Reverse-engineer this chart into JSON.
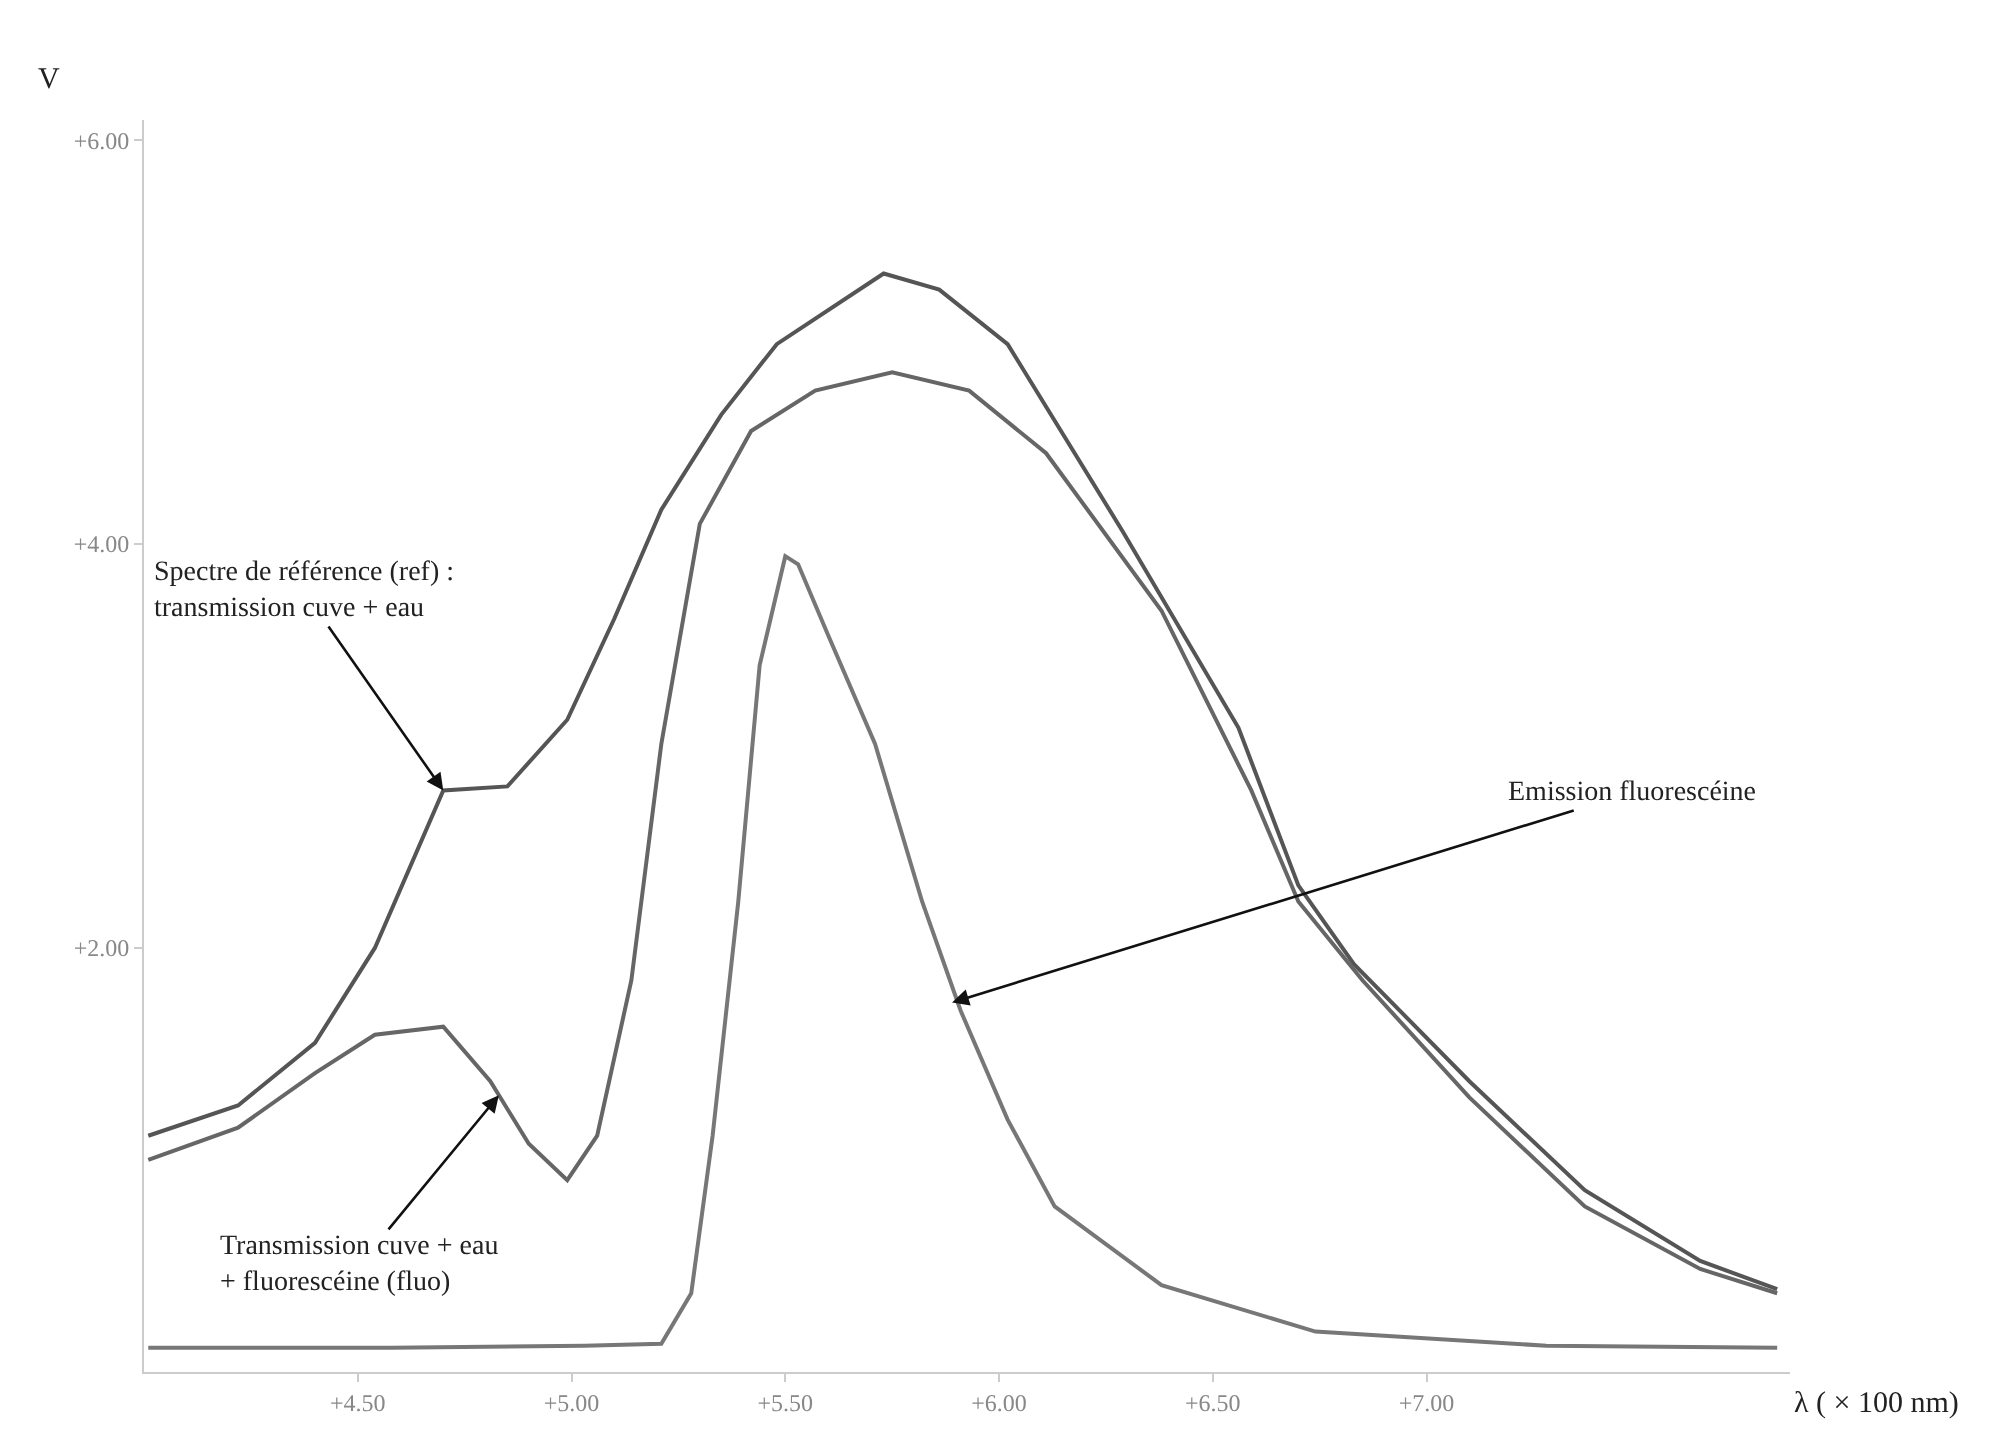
{
  "chart_data": {
    "type": "line",
    "xlabel": "λ ( × 100 nm)",
    "ylabel": "V",
    "xlim": [
      4.0,
      7.85
    ],
    "ylim": [
      -0.1,
      6.1
    ],
    "xticks": [
      {
        "value": 4.5,
        "label": "+4.50"
      },
      {
        "value": 5.0,
        "label": "+5.00"
      },
      {
        "value": 5.5,
        "label": "+5.50"
      },
      {
        "value": 6.0,
        "label": "+6.00"
      },
      {
        "value": 6.5,
        "label": "+6.50"
      },
      {
        "value": 7.0,
        "label": "+7.00"
      }
    ],
    "yticks": [
      {
        "value": 2,
        "label": "+2.00"
      },
      {
        "value": 4,
        "label": "+4.00"
      },
      {
        "value": 6,
        "label": "+6.00"
      }
    ],
    "marker": "none",
    "line_style": "solid",
    "series": [
      {
        "color": "#555555",
        "x": [
          4.01,
          4.22,
          4.4,
          4.54,
          4.7,
          4.85,
          4.99,
          5.1,
          5.21,
          5.35,
          5.48,
          5.73,
          5.86,
          6.02,
          6.29,
          6.56,
          6.7,
          6.83,
          7.1,
          7.37,
          7.64,
          7.82
        ],
        "values": [
          1.07,
          1.22,
          1.53,
          2.0,
          2.78,
          2.8,
          3.13,
          3.63,
          4.17,
          4.64,
          4.99,
          5.34,
          5.26,
          4.99,
          4.06,
          3.09,
          2.31,
          1.92,
          1.34,
          0.8,
          0.45,
          0.31
        ]
      },
      {
        "color": "#666666",
        "x": [
          4.01,
          4.22,
          4.4,
          4.54,
          4.7,
          4.81,
          4.9,
          4.99,
          5.06,
          5.14,
          5.21,
          5.3,
          5.42,
          5.57,
          5.75,
          5.93,
          6.11,
          6.38,
          6.59,
          6.7,
          6.85,
          7.1,
          7.37,
          7.64,
          7.82
        ],
        "values": [
          0.95,
          1.11,
          1.38,
          1.57,
          1.61,
          1.34,
          1.03,
          0.85,
          1.07,
          1.84,
          3.01,
          4.1,
          4.56,
          4.76,
          4.85,
          4.76,
          4.45,
          3.67,
          2.78,
          2.23,
          1.84,
          1.26,
          0.72,
          0.41,
          0.29
        ]
      },
      {
        "color": "#777777",
        "x": [
          4.01,
          4.58,
          5.03,
          5.21,
          5.28,
          5.33,
          5.39,
          5.44,
          5.5,
          5.53,
          5.6,
          5.71,
          5.82,
          5.91,
          6.02,
          6.13,
          6.38,
          6.74,
          7.28,
          7.82
        ],
        "values": [
          0.02,
          0.02,
          0.03,
          0.04,
          0.29,
          1.07,
          2.23,
          3.4,
          3.94,
          3.9,
          3.55,
          3.01,
          2.23,
          1.69,
          1.15,
          0.72,
          0.33,
          0.1,
          0.03,
          0.02
        ]
      }
    ],
    "annotations": [
      {
        "text": "Spectre de référence (ref) :\ntransmission cuve + eau",
        "x": 4.7,
        "y": 2.78
      },
      {
        "text": "Transmission cuve + eau\n+ fluorescéine (fluo)",
        "x": 4.83,
        "y": 1.27
      },
      {
        "text": "Emission fluorescéine",
        "x": 5.89,
        "y": 1.73
      }
    ]
  }
}
